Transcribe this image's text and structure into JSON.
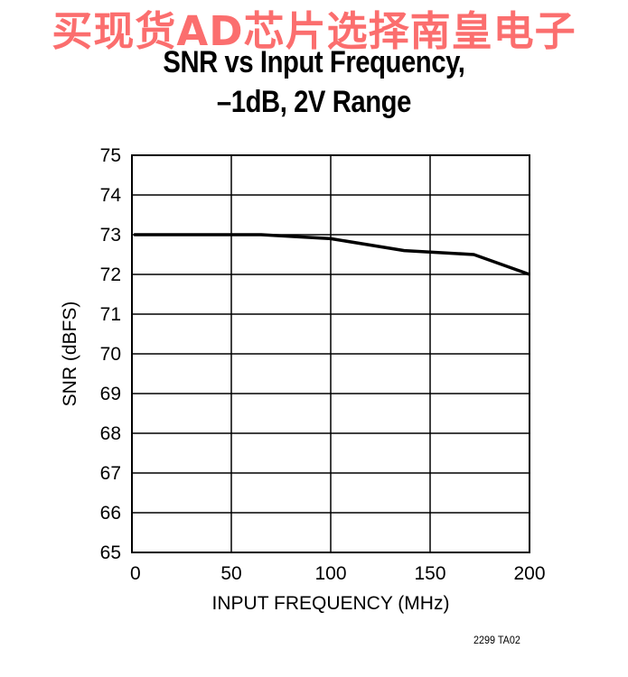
{
  "watermark": "买现货AD芯片选择南皇电子",
  "figure_code": "2299 TA02",
  "colors": {
    "line": "#000000",
    "grid": "#000000",
    "watermark": "#fa5a5a"
  },
  "chart_data": {
    "type": "line",
    "title_lines": [
      "SNR vs Input Frequency,",
      "–1dB, 2V Range"
    ],
    "xlabel": "INPUT FREQUENCY (MHz)",
    "ylabel": "SNR (dBFS)",
    "xlim": [
      0,
      200
    ],
    "ylim": [
      65,
      75
    ],
    "xticks": [
      0,
      50,
      100,
      150,
      200
    ],
    "yticks": [
      65,
      66,
      67,
      68,
      69,
      70,
      71,
      72,
      73,
      74,
      75
    ],
    "grid": true,
    "series": [
      {
        "x": [
          1,
          65,
          100,
          137,
          172,
          200
        ],
        "y": [
          73.0,
          73.0,
          72.9,
          72.6,
          72.5,
          72.0
        ]
      }
    ]
  }
}
